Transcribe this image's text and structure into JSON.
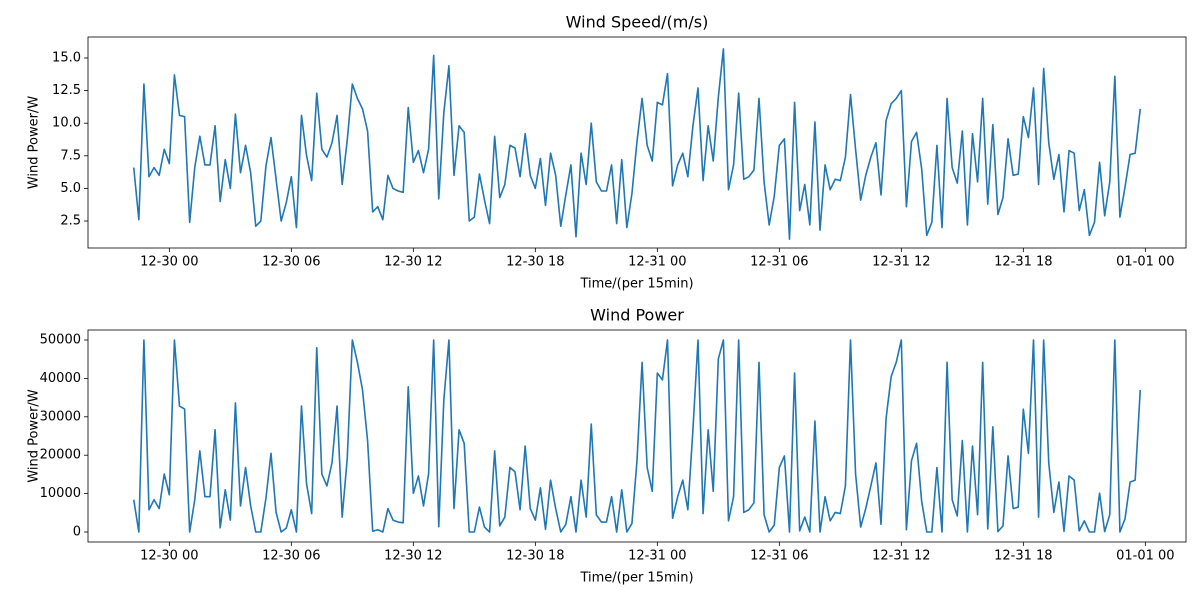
{
  "chart_data": [
    {
      "type": "line",
      "title": "Wind Speed/(m/s)",
      "x_label": "Time/(per 15min)",
      "y_label": "Wind Power/W",
      "x": [
        "12-29 22:15",
        "12-29 22:30",
        "12-29 22:45",
        "12-29 23:00",
        "12-29 23:15",
        "12-29 23:30",
        "12-29 23:45",
        "12-30 00:00",
        "12-30 00:15",
        "12-30 00:30",
        "12-30 00:45",
        "12-30 01:00",
        "12-30 01:15",
        "12-30 01:30",
        "12-30 01:45",
        "12-30 02:00",
        "12-30 02:15",
        "12-30 02:30",
        "12-30 02:45",
        "12-30 03:00",
        "12-30 03:15",
        "12-30 03:30",
        "12-30 03:45",
        "12-30 04:00",
        "12-30 04:15",
        "12-30 04:30",
        "12-30 04:45",
        "12-30 05:00",
        "12-30 05:15",
        "12-30 05:30",
        "12-30 05:45",
        "12-30 06:00",
        "12-30 06:15",
        "12-30 06:30",
        "12-30 06:45",
        "12-30 07:00",
        "12-30 07:15",
        "12-30 07:30",
        "12-30 07:45",
        "12-30 08:00",
        "12-30 08:15",
        "12-30 08:30",
        "12-30 08:45",
        "12-30 09:00",
        "12-30 09:15",
        "12-30 09:30",
        "12-30 09:45",
        "12-30 10:00",
        "12-30 10:15",
        "12-30 10:30",
        "12-30 10:45",
        "12-30 11:00",
        "12-30 11:15",
        "12-30 11:30",
        "12-30 11:45",
        "12-30 12:00",
        "12-30 12:15",
        "12-30 12:30",
        "12-30 12:45",
        "12-30 13:00",
        "12-30 13:15",
        "12-30 13:30",
        "12-30 13:45",
        "12-30 14:00",
        "12-30 14:15",
        "12-30 14:30",
        "12-30 14:45",
        "12-30 15:00",
        "12-30 15:15",
        "12-30 15:30",
        "12-30 15:45",
        "12-30 16:00",
        "12-30 16:15",
        "12-30 16:30",
        "12-30 16:45",
        "12-30 17:00",
        "12-30 17:15",
        "12-30 17:30",
        "12-30 17:45",
        "12-30 18:00",
        "12-30 18:15",
        "12-30 18:30",
        "12-30 18:45",
        "12-30 19:00",
        "12-30 19:15",
        "12-30 19:30",
        "12-30 19:45",
        "12-30 20:00",
        "12-30 20:15",
        "12-30 20:30",
        "12-30 20:45",
        "12-30 21:00",
        "12-30 21:15",
        "12-30 21:30",
        "12-30 21:45",
        "12-30 22:00",
        "12-30 22:15",
        "12-30 22:30",
        "12-30 22:45",
        "12-30 23:00",
        "12-30 23:15",
        "12-30 23:30",
        "12-30 23:45",
        "12-31 00:00",
        "12-31 00:15",
        "12-31 00:30",
        "12-31 00:45",
        "12-31 01:00",
        "12-31 01:15",
        "12-31 01:30",
        "12-31 01:45",
        "12-31 02:00",
        "12-31 02:15",
        "12-31 02:30",
        "12-31 02:45",
        "12-31 03:00",
        "12-31 03:15",
        "12-31 03:30",
        "12-31 03:45",
        "12-31 04:00",
        "12-31 04:15",
        "12-31 04:30",
        "12-31 04:45",
        "12-31 05:00",
        "12-31 05:15",
        "12-31 05:30",
        "12-31 05:45",
        "12-31 06:00",
        "12-31 06:15",
        "12-31 06:30",
        "12-31 06:45",
        "12-31 07:00",
        "12-31 07:15",
        "12-31 07:30",
        "12-31 07:45",
        "12-31 08:00",
        "12-31 08:15",
        "12-31 08:30",
        "12-31 08:45",
        "12-31 09:00",
        "12-31 09:15",
        "12-31 09:30",
        "12-31 09:45",
        "12-31 10:00",
        "12-31 10:15",
        "12-31 10:30",
        "12-31 10:45",
        "12-31 11:00",
        "12-31 11:15",
        "12-31 11:30",
        "12-31 11:45",
        "12-31 12:00",
        "12-31 12:15",
        "12-31 12:30",
        "12-31 12:45",
        "12-31 13:00",
        "12-31 13:15",
        "12-31 13:30",
        "12-31 13:45",
        "12-31 14:00",
        "12-31 14:15",
        "12-31 14:30",
        "12-31 14:45",
        "12-31 15:00",
        "12-31 15:15",
        "12-31 15:30",
        "12-31 15:45",
        "12-31 16:00",
        "12-31 16:15",
        "12-31 16:30",
        "12-31 16:45",
        "12-31 17:00",
        "12-31 17:15",
        "12-31 17:30",
        "12-31 17:45",
        "12-31 18:00",
        "12-31 18:15",
        "12-31 18:30",
        "12-31 18:45",
        "12-31 19:00",
        "12-31 19:15",
        "12-31 19:30",
        "12-31 19:45",
        "12-31 20:00",
        "12-31 20:15",
        "12-31 20:30",
        "12-31 20:45",
        "12-31 21:00",
        "12-31 21:15",
        "12-31 21:30",
        "12-31 21:45",
        "12-31 22:00",
        "12-31 22:15",
        "12-31 22:30",
        "12-31 22:45",
        "12-31 23:00",
        "12-31 23:15",
        "12-31 23:30",
        "12-31 23:45"
      ],
      "values": [
        6.6,
        2.6,
        13.0,
        5.9,
        6.6,
        6.0,
        8.0,
        6.9,
        13.7,
        10.6,
        10.5,
        2.4,
        6.6,
        9.0,
        6.8,
        6.8,
        9.8,
        4.0,
        7.2,
        5.0,
        10.7,
        6.2,
        8.3,
        6.2,
        2.1,
        2.5,
        6.7,
        8.9,
        5.7,
        2.5,
        3.9,
        5.9,
        2.0,
        10.6,
        7.5,
        5.6,
        12.3,
        8.0,
        7.4,
        8.5,
        10.6,
        5.3,
        8.7,
        13.0,
        11.9,
        11.1,
        9.4,
        3.2,
        3.6,
        2.6,
        6.0,
        5.0,
        4.8,
        4.7,
        11.2,
        7.0,
        7.9,
        6.2,
        8.0,
        15.2,
        4.2,
        10.8,
        14.4,
        6.0,
        9.8,
        9.3,
        2.5,
        2.8,
        6.1,
        4.1,
        2.3,
        9.0,
        4.3,
        5.3,
        8.3,
        8.1,
        5.9,
        9.2,
        6.0,
        5.0,
        7.3,
        3.7,
        7.7,
        6.0,
        2.1,
        4.5,
        6.8,
        1.3,
        7.7,
        5.3,
        10.0,
        5.5,
        4.8,
        4.8,
        6.8,
        2.3,
        7.2,
        2.0,
        4.6,
        8.6,
        11.9,
        8.3,
        7.1,
        11.6,
        11.4,
        13.8,
        5.2,
        6.8,
        7.7,
        5.9,
        9.8,
        12.7,
        5.6,
        9.8,
        7.1,
        12.0,
        15.7,
        4.9,
        6.8,
        12.3,
        5.7,
        5.9,
        6.4,
        11.9,
        5.5,
        2.2,
        4.4,
        8.3,
        8.8,
        1.1,
        11.6,
        3.3,
        5.3,
        2.2,
        10.1,
        1.8,
        6.8,
        4.9,
        5.7,
        5.6,
        7.4,
        12.2,
        8.0,
        4.1,
        6.0,
        7.4,
        8.5,
        4.5,
        10.2,
        11.5,
        11.9,
        12.5,
        3.6,
        8.6,
        9.3,
        6.5,
        1.4,
        2.4,
        8.3,
        2.0,
        11.9,
        6.6,
        5.4,
        9.4,
        2.2,
        9.2,
        5.5,
        11.9,
        3.8,
        9.9,
        3.0,
        4.3,
        8.8,
        6.0,
        6.1,
        10.5,
        8.9,
        12.7,
        5.3,
        14.2,
        8.5,
        5.7,
        7.6,
        3.2,
        7.9,
        7.7,
        3.3,
        4.9,
        1.4,
        2.4,
        7.0,
        2.9,
        5.5,
        13.6,
        2.8,
        5.1,
        7.6,
        7.7,
        11.1
      ],
      "color": "#1f77b4",
      "xlim": [
        "12-29 20:00",
        "01-01 02:00"
      ],
      "xticks": [
        "12-30 00",
        "12-30 06",
        "12-30 12",
        "12-30 18",
        "12-31 00",
        "12-31 06",
        "12-31 12",
        "12-31 18",
        "01-01 00"
      ],
      "ylim": [
        0.43,
        16.61
      ],
      "yticks": [
        2.5,
        {
          "value": 5,
          "label": "5.0"
        },
        7.5,
        {
          "value": 10,
          "label": "10.0"
        },
        12.5,
        {
          "value": 15,
          "label": "15.0"
        }
      ]
    },
    {
      "type": "line",
      "title": "Wind Power",
      "x_label": "Time/(per 15min)",
      "y_label": "Wind Power/W",
      "x": [
        "12-29 22:15",
        "12-29 22:30",
        "12-29 22:45",
        "12-29 23:00",
        "12-29 23:15",
        "12-29 23:30",
        "12-29 23:45",
        "12-30 00:00",
        "12-30 00:15",
        "12-30 00:30",
        "12-30 00:45",
        "12-30 01:00",
        "12-30 01:15",
        "12-30 01:30",
        "12-30 01:45",
        "12-30 02:00",
        "12-30 02:15",
        "12-30 02:30",
        "12-30 02:45",
        "12-30 03:00",
        "12-30 03:15",
        "12-30 03:30",
        "12-30 03:45",
        "12-30 04:00",
        "12-30 04:15",
        "12-30 04:30",
        "12-30 04:45",
        "12-30 05:00",
        "12-30 05:15",
        "12-30 05:30",
        "12-30 05:45",
        "12-30 06:00",
        "12-30 06:15",
        "12-30 06:30",
        "12-30 06:45",
        "12-30 07:00",
        "12-30 07:15",
        "12-30 07:30",
        "12-30 07:45",
        "12-30 08:00",
        "12-30 08:15",
        "12-30 08:30",
        "12-30 08:45",
        "12-30 09:00",
        "12-30 09:15",
        "12-30 09:30",
        "12-30 09:45",
        "12-30 10:00",
        "12-30 10:15",
        "12-30 10:30",
        "12-30 10:45",
        "12-30 11:00",
        "12-30 11:15",
        "12-30 11:30",
        "12-30 11:45",
        "12-30 12:00",
        "12-30 12:15",
        "12-30 12:30",
        "12-30 12:45",
        "12-30 13:00",
        "12-30 13:15",
        "12-30 13:30",
        "12-30 13:45",
        "12-30 14:00",
        "12-30 14:15",
        "12-30 14:30",
        "12-30 14:45",
        "12-30 15:00",
        "12-30 15:15",
        "12-30 15:30",
        "12-30 15:45",
        "12-30 16:00",
        "12-30 16:15",
        "12-30 16:30",
        "12-30 16:45",
        "12-30 17:00",
        "12-30 17:15",
        "12-30 17:30",
        "12-30 17:45",
        "12-30 18:00",
        "12-30 18:15",
        "12-30 18:30",
        "12-30 18:45",
        "12-30 19:00",
        "12-30 19:15",
        "12-30 19:30",
        "12-30 19:45",
        "12-30 20:00",
        "12-30 20:15",
        "12-30 20:30",
        "12-30 20:45",
        "12-30 21:00",
        "12-30 21:15",
        "12-30 21:30",
        "12-30 21:45",
        "12-30 22:00",
        "12-30 22:15",
        "12-30 22:30",
        "12-30 22:45",
        "12-30 23:00",
        "12-30 23:15",
        "12-30 23:30",
        "12-30 23:45",
        "12-31 00:00",
        "12-31 00:15",
        "12-31 00:30",
        "12-31 00:45",
        "12-31 01:00",
        "12-31 01:15",
        "12-31 01:30",
        "12-31 01:45",
        "12-31 02:00",
        "12-31 02:15",
        "12-31 02:30",
        "12-31 02:45",
        "12-31 03:00",
        "12-31 03:15",
        "12-31 03:30",
        "12-31 03:45",
        "12-31 04:00",
        "12-31 04:15",
        "12-31 04:30",
        "12-31 04:45",
        "12-31 05:00",
        "12-31 05:15",
        "12-31 05:30",
        "12-31 05:45",
        "12-31 06:00",
        "12-31 06:15",
        "12-31 06:30",
        "12-31 06:45",
        "12-31 07:00",
        "12-31 07:15",
        "12-31 07:30",
        "12-31 07:45",
        "12-31 08:00",
        "12-31 08:15",
        "12-31 08:30",
        "12-31 08:45",
        "12-31 09:00",
        "12-31 09:15",
        "12-31 09:30",
        "12-31 09:45",
        "12-31 10:00",
        "12-31 10:15",
        "12-31 10:30",
        "12-31 10:45",
        "12-31 11:00",
        "12-31 11:15",
        "12-31 11:30",
        "12-31 11:45",
        "12-31 12:00",
        "12-31 12:15",
        "12-31 12:30",
        "12-31 12:45",
        "12-31 13:00",
        "12-31 13:15",
        "12-31 13:30",
        "12-31 13:45",
        "12-31 14:00",
        "12-31 14:15",
        "12-31 14:30",
        "12-31 14:45",
        "12-31 15:00",
        "12-31 15:15",
        "12-31 15:30",
        "12-31 15:45",
        "12-31 16:00",
        "12-31 16:15",
        "12-31 16:30",
        "12-31 16:45",
        "12-31 17:00",
        "12-31 17:15",
        "12-31 17:30",
        "12-31 17:45",
        "12-31 18:00",
        "12-31 18:15",
        "12-31 18:30",
        "12-31 18:45",
        "12-31 19:00",
        "12-31 19:15",
        "12-31 19:30",
        "12-31 19:45",
        "12-31 20:00",
        "12-31 20:15",
        "12-31 20:30",
        "12-31 20:45",
        "12-31 21:00",
        "12-31 21:15",
        "12-31 21:30",
        "12-31 21:45",
        "12-31 22:00",
        "12-31 22:15",
        "12-31 22:30",
        "12-31 22:45",
        "12-31 23:00",
        "12-31 23:15",
        "12-31 23:30",
        "12-31 23:45"
      ],
      "values": [
        8400,
        0,
        50000,
        5800,
        8400,
        6100,
        15100,
        9700,
        50000,
        32800,
        32000,
        0,
        8400,
        21100,
        9200,
        9200,
        26600,
        1100,
        11000,
        3100,
        33600,
        6800,
        16800,
        6800,
        0,
        0,
        8800,
        20500,
        5100,
        0,
        1000,
        5800,
        0,
        32800,
        12500,
        4800,
        48000,
        15100,
        12000,
        18000,
        32800,
        3900,
        19200,
        50000,
        44200,
        37000,
        23800,
        200,
        600,
        0,
        6100,
        3100,
        2600,
        2400,
        37800,
        10100,
        14600,
        6800,
        15100,
        50000,
        1400,
        34400,
        50000,
        6100,
        26600,
        23100,
        0,
        0,
        6500,
        1300,
        0,
        21100,
        1600,
        3900,
        16800,
        15700,
        5800,
        22400,
        6100,
        3100,
        11500,
        700,
        13500,
        6100,
        0,
        2000,
        9200,
        0,
        13500,
        3900,
        28100,
        4500,
        2600,
        2600,
        9200,
        0,
        11000,
        0,
        2200,
        18600,
        44200,
        16800,
        10600,
        41400,
        39600,
        50000,
        3600,
        9200,
        13500,
        5800,
        26600,
        50000,
        4800,
        26600,
        10600,
        45100,
        50000,
        2900,
        9200,
        50000,
        5100,
        5800,
        7600,
        44200,
        4500,
        0,
        1800,
        16800,
        19800,
        0,
        41400,
        300,
        3900,
        0,
        28900,
        0,
        9200,
        2900,
        5100,
        4800,
        12000,
        50000,
        15100,
        1300,
        6100,
        12000,
        18000,
        2000,
        29600,
        40500,
        44200,
        50000,
        600,
        18600,
        23100,
        8000,
        0,
        0,
        16800,
        0,
        44200,
        8400,
        4200,
        23800,
        0,
        22400,
        4500,
        44200,
        800,
        27400,
        100,
        1600,
        19800,
        6100,
        6500,
        32000,
        20500,
        50000,
        3900,
        50000,
        18000,
        5100,
        13000,
        200,
        14600,
        13500,
        300,
        2900,
        0,
        0,
        10100,
        100,
        4500,
        50000,
        0,
        3400,
        13000,
        13500,
        37000
      ],
      "color": "#1f77b4",
      "xlim": [
        "12-29 20:00",
        "01-01 02:00"
      ],
      "xticks": [
        "12-30 00",
        "12-30 06",
        "12-30 12",
        "12-30 18",
        "12-31 00",
        "12-31 06",
        "12-31 12",
        "12-31 18",
        "01-01 00"
      ],
      "ylim": [
        -2600,
        52600
      ],
      "yticks": [
        0,
        10000,
        20000,
        30000,
        40000,
        50000
      ]
    }
  ]
}
